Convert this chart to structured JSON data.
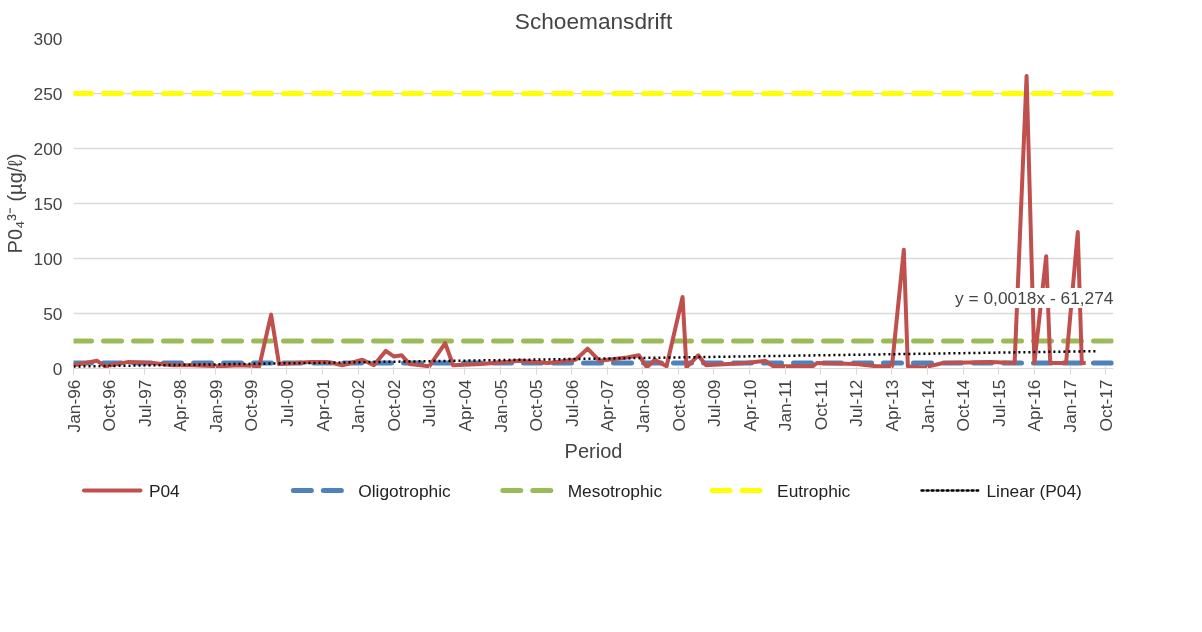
{
  "chart_data": {
    "type": "line",
    "title": "Schoemansdrift",
    "xlabel": "Period",
    "ylabel": "P0₄³⁻ (µg/ℓ)",
    "xlim": [
      "1996-01",
      "2017-12"
    ],
    "xticks": [
      {
        "value": "1996-01",
        "label": "Jan-96"
      },
      {
        "value": "1996-10",
        "label": "Oct-96"
      },
      {
        "value": "1997-07",
        "label": "Jul-97"
      },
      {
        "value": "1998-04",
        "label": "Apr-98"
      },
      {
        "value": "1999-01",
        "label": "Jan-99"
      },
      {
        "value": "1999-10",
        "label": "Oct-99"
      },
      {
        "value": "2000-07",
        "label": "Jul-00"
      },
      {
        "value": "2001-04",
        "label": "Apr-01"
      },
      {
        "value": "2002-01",
        "label": "Jan-02"
      },
      {
        "value": "2002-10",
        "label": "Oct-02"
      },
      {
        "value": "2003-07",
        "label": "Jul-03"
      },
      {
        "value": "2004-04",
        "label": "Apr-04"
      },
      {
        "value": "2005-01",
        "label": "Jan-05"
      },
      {
        "value": "2005-10",
        "label": "Oct-05"
      },
      {
        "value": "2006-07",
        "label": "Jul-06"
      },
      {
        "value": "2007-04",
        "label": "Apr-07"
      },
      {
        "value": "2008-01",
        "label": "Jan-08"
      },
      {
        "value": "2008-10",
        "label": "Oct-08"
      },
      {
        "value": "2009-07",
        "label": "Jul-09"
      },
      {
        "value": "2010-04",
        "label": "Apr-10"
      },
      {
        "value": "2011-01",
        "label": "Jan-11"
      },
      {
        "value": "2011-10",
        "label": "Oct-11"
      },
      {
        "value": "2012-07",
        "label": "Jul-12"
      },
      {
        "value": "2013-04",
        "label": "Apr-13"
      },
      {
        "value": "2014-01",
        "label": "Jan-14"
      },
      {
        "value": "2014-10",
        "label": "Oct-14"
      },
      {
        "value": "2015-07",
        "label": "Jul-15"
      },
      {
        "value": "2016-04",
        "label": "Apr-16"
      },
      {
        "value": "2017-01",
        "label": "Jan-17"
      },
      {
        "value": "2017-10",
        "label": "Oct-17"
      }
    ],
    "ylim": [
      0,
      300
    ],
    "yticks": [
      0,
      50,
      100,
      150,
      200,
      250,
      300
    ],
    "grid": "y",
    "legend": "bottom",
    "series": [
      {
        "name": "P04",
        "color": "#c0504d",
        "line_style": "solid",
        "x": [
          "1996-01",
          "1996-07",
          "1996-09",
          "1997-03",
          "1997-09",
          "1998-02",
          "1998-07",
          "1999-02",
          "1999-07",
          "1999-12",
          "2000-03",
          "2000-05",
          "2000-09",
          "2001-01",
          "2001-05",
          "2001-09",
          "2002-02",
          "2002-05",
          "2002-08",
          "2002-10",
          "2002-12",
          "2003-02",
          "2003-07",
          "2003-11",
          "2004-01",
          "2004-08",
          "2005-06",
          "2006-01",
          "2006-08",
          "2006-11",
          "2007-02",
          "2007-09",
          "2007-12",
          "2008-02",
          "2008-04",
          "2008-07",
          "2008-11",
          "2008-12",
          "2009-03",
          "2009-05",
          "2010-03",
          "2010-08",
          "2010-10",
          "2011-08",
          "2011-09",
          "2012-07",
          "2012-12",
          "2013-04",
          "2013-07",
          "2013-08",
          "2013-12",
          "2014-05",
          "2015-05",
          "2015-11",
          "2016-02",
          "2016-04",
          "2016-07",
          "2016-08",
          "2016-12",
          "2017-03",
          "2017-04",
          "2017-05"
        ],
        "values": [
          3,
          7,
          2,
          6,
          5,
          3,
          3,
          2,
          3,
          2,
          49,
          4,
          5,
          6,
          6,
          3,
          8,
          3,
          16,
          11,
          12,
          4,
          2,
          23,
          3,
          4,
          7,
          5,
          8,
          18,
          7,
          10,
          12,
          1,
          8,
          2,
          65,
          1,
          12,
          3,
          5,
          7,
          2,
          2,
          5,
          4,
          2,
          2,
          108,
          2,
          1,
          5,
          6,
          5,
          266,
          5,
          102,
          5,
          5,
          124,
          5,
          5
        ]
      },
      {
        "name": "Linear (P04)",
        "color": "#000000",
        "line_style": "dotted",
        "x": [
          "1996-01",
          "2017-08"
        ],
        "values": [
          1.8,
          15.8
        ]
      }
    ],
    "ref_lines": [
      {
        "axis": "y",
        "value": 5,
        "label": "Oligotrophic",
        "color": "#4f81bd",
        "line_style": "dashed"
      },
      {
        "axis": "y",
        "value": 25,
        "label": "Mesotrophic",
        "color": "#9bbb59",
        "line_style": "dashed"
      },
      {
        "axis": "y",
        "value": 250,
        "label": "Eutrophic",
        "color": "#ffff00",
        "line_style": "dashed"
      }
    ],
    "annotations": [
      "y = 0,0018x - 61,274"
    ]
  }
}
